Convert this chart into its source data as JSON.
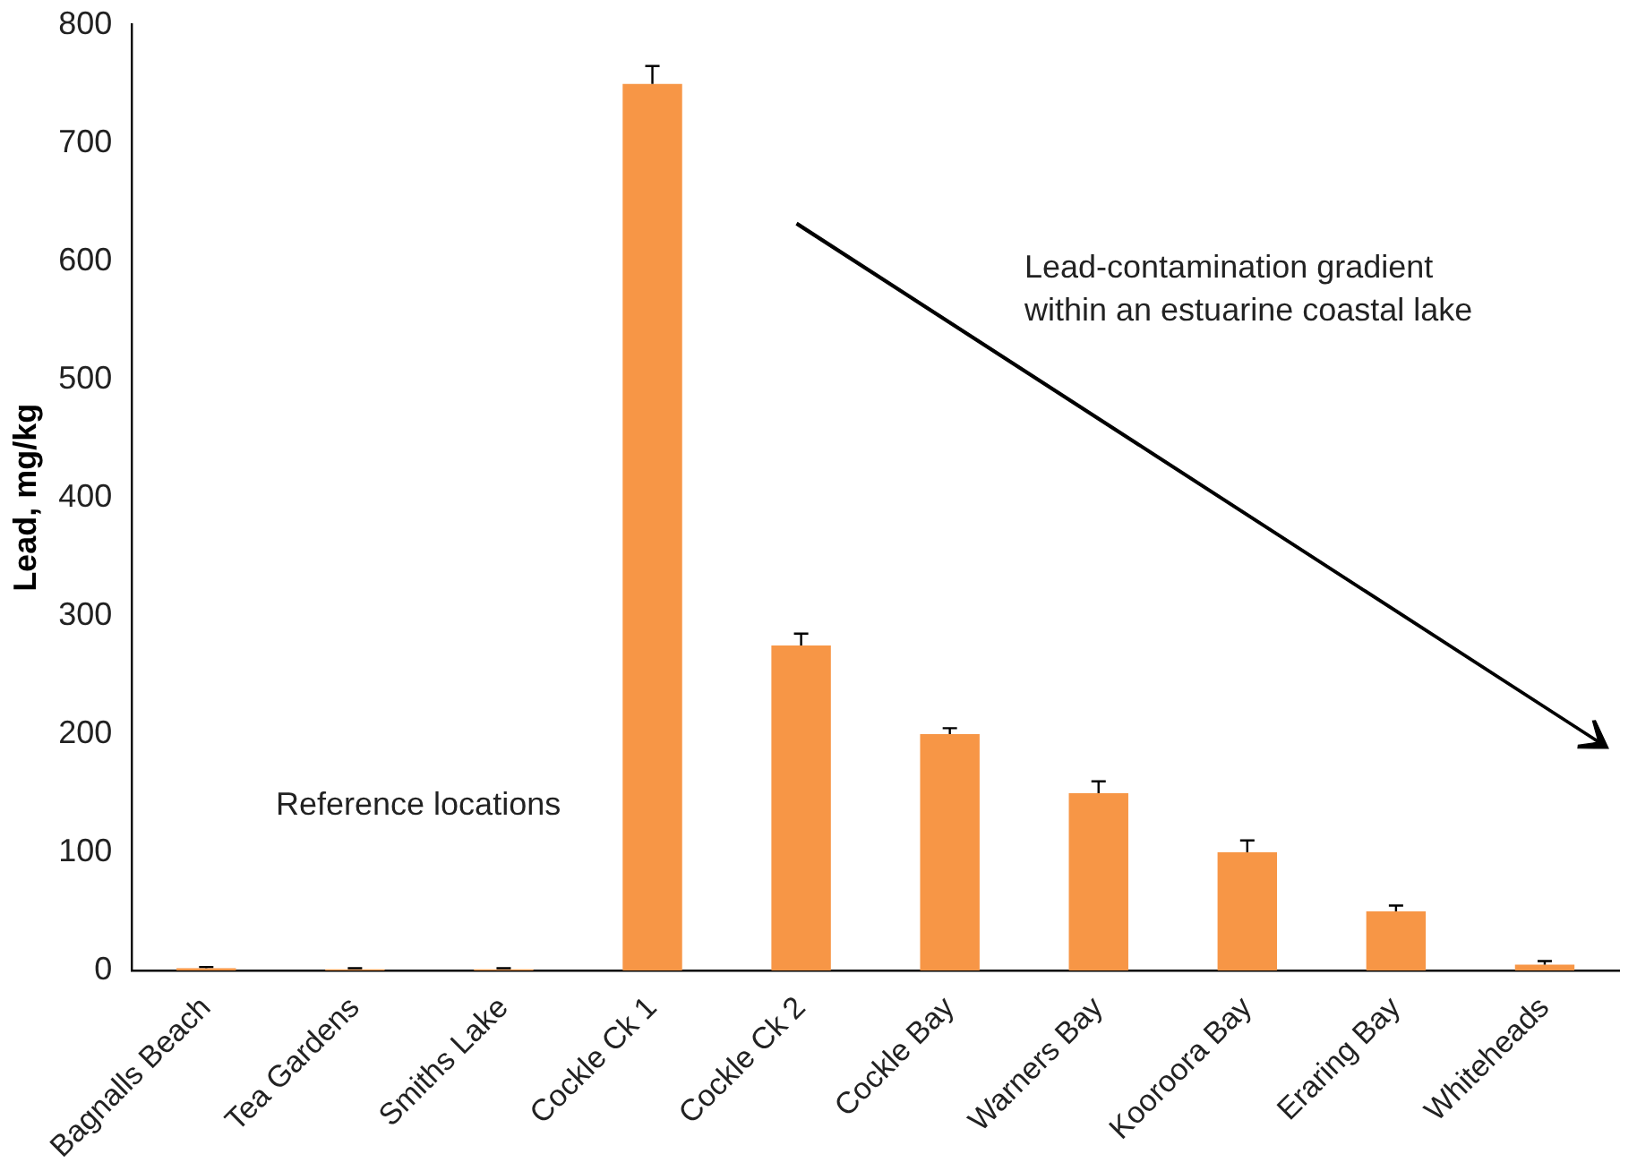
{
  "chart_data": {
    "type": "bar",
    "ylabel": "Lead, mg/kg",
    "categories": [
      "Bagnalls Beach",
      "Tea Gardens",
      "Smiths Lake",
      "Cockle Ck 1",
      "Cockle Ck 2",
      "Cockle Bay",
      "Warners Bay",
      "Kooroora Bay",
      "Eraring Bay",
      "Whiteheads"
    ],
    "values": [
      2,
      1,
      1,
      750,
      275,
      200,
      150,
      100,
      50,
      5
    ],
    "errors": [
      [
        2,
        3
      ],
      [
        1,
        2
      ],
      [
        1,
        2
      ],
      [
        750,
        765
      ],
      [
        275,
        285
      ],
      [
        200,
        205
      ],
      [
        150,
        160
      ],
      [
        100,
        110
      ],
      [
        50,
        55
      ],
      [
        5,
        8
      ]
    ],
    "color": "#f79646",
    "ylim": [
      0,
      800
    ],
    "yticks": [
      0,
      100,
      200,
      300,
      400,
      500,
      600,
      700,
      800
    ],
    "grid": false,
    "legend": false,
    "annotations": [
      "Reference locations",
      "Lead-contamination gradient\nwithin an estuarine coastal lake"
    ]
  }
}
